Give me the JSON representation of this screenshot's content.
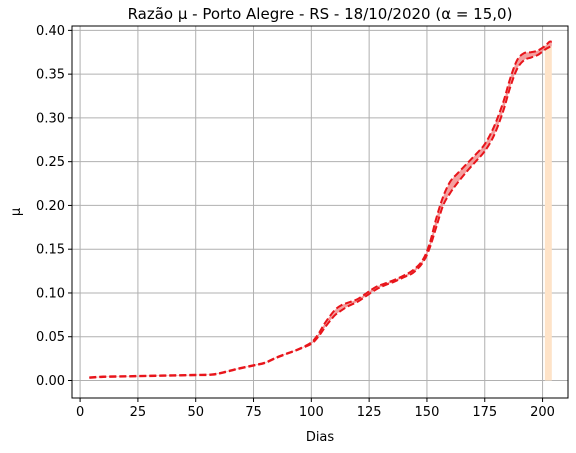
{
  "chart_data": {
    "type": "line",
    "title": "Razão μ - Porto Alegre - RS - 18/10/2020 (α = 15,0)",
    "xlabel": "Dias",
    "ylabel": "μ",
    "xlim": [
      -3.5,
      211
    ],
    "ylim": [
      -0.02,
      0.405
    ],
    "grid": true,
    "x_ticks": [
      0,
      25,
      50,
      75,
      100,
      125,
      150,
      175,
      200
    ],
    "x_tick_labels": [
      "0",
      "25",
      "50",
      "75",
      "100",
      "125",
      "150",
      "175",
      "200"
    ],
    "y_ticks": [
      0,
      0.05,
      0.1,
      0.15,
      0.2,
      0.25,
      0.3,
      0.35,
      0.4
    ],
    "y_tick_labels": [
      "0.00",
      "0.05",
      "0.10",
      "0.15",
      "0.20",
      "0.25",
      "0.30",
      "0.35",
      "0.40"
    ],
    "forecast_band": {
      "x_start": 201,
      "x_end": 204,
      "color": "#fee3c8"
    },
    "colors": {
      "line": "#e8151b",
      "band_fill": "#f08080",
      "grid": "#b0b0b0"
    },
    "x": [
      4,
      10,
      20,
      30,
      40,
      50,
      57,
      62,
      68,
      75,
      80,
      85,
      90,
      95,
      100,
      103,
      106,
      110,
      113,
      116,
      120,
      124,
      128,
      132,
      136,
      140,
      144,
      148,
      151,
      154,
      157,
      160,
      163,
      167,
      171,
      175,
      179,
      183,
      186,
      189,
      192,
      195,
      198,
      201,
      203,
      204
    ],
    "series": [
      {
        "role": "lower",
        "values": [
          0.003,
          0.004,
          0.0045,
          0.005,
          0.0055,
          0.006,
          0.0065,
          0.009,
          0.013,
          0.017,
          0.02,
          0.026,
          0.031,
          0.036,
          0.042,
          0.05,
          0.061,
          0.074,
          0.08,
          0.085,
          0.09,
          0.097,
          0.104,
          0.109,
          0.113,
          0.118,
          0.123,
          0.134,
          0.15,
          0.175,
          0.2,
          0.214,
          0.225,
          0.238,
          0.25,
          0.262,
          0.28,
          0.308,
          0.335,
          0.356,
          0.366,
          0.369,
          0.372,
          0.378,
          0.381,
          0.382
        ]
      },
      {
        "role": "upper",
        "values": [
          0.0035,
          0.0045,
          0.005,
          0.0055,
          0.006,
          0.0065,
          0.007,
          0.0095,
          0.0135,
          0.0175,
          0.0205,
          0.0265,
          0.0315,
          0.0365,
          0.0435,
          0.053,
          0.066,
          0.08,
          0.086,
          0.089,
          0.093,
          0.1,
          0.107,
          0.111,
          0.115,
          0.12,
          0.126,
          0.137,
          0.155,
          0.185,
          0.21,
          0.227,
          0.236,
          0.247,
          0.258,
          0.27,
          0.29,
          0.318,
          0.345,
          0.366,
          0.374,
          0.375,
          0.377,
          0.382,
          0.387,
          0.387
        ]
      }
    ]
  }
}
